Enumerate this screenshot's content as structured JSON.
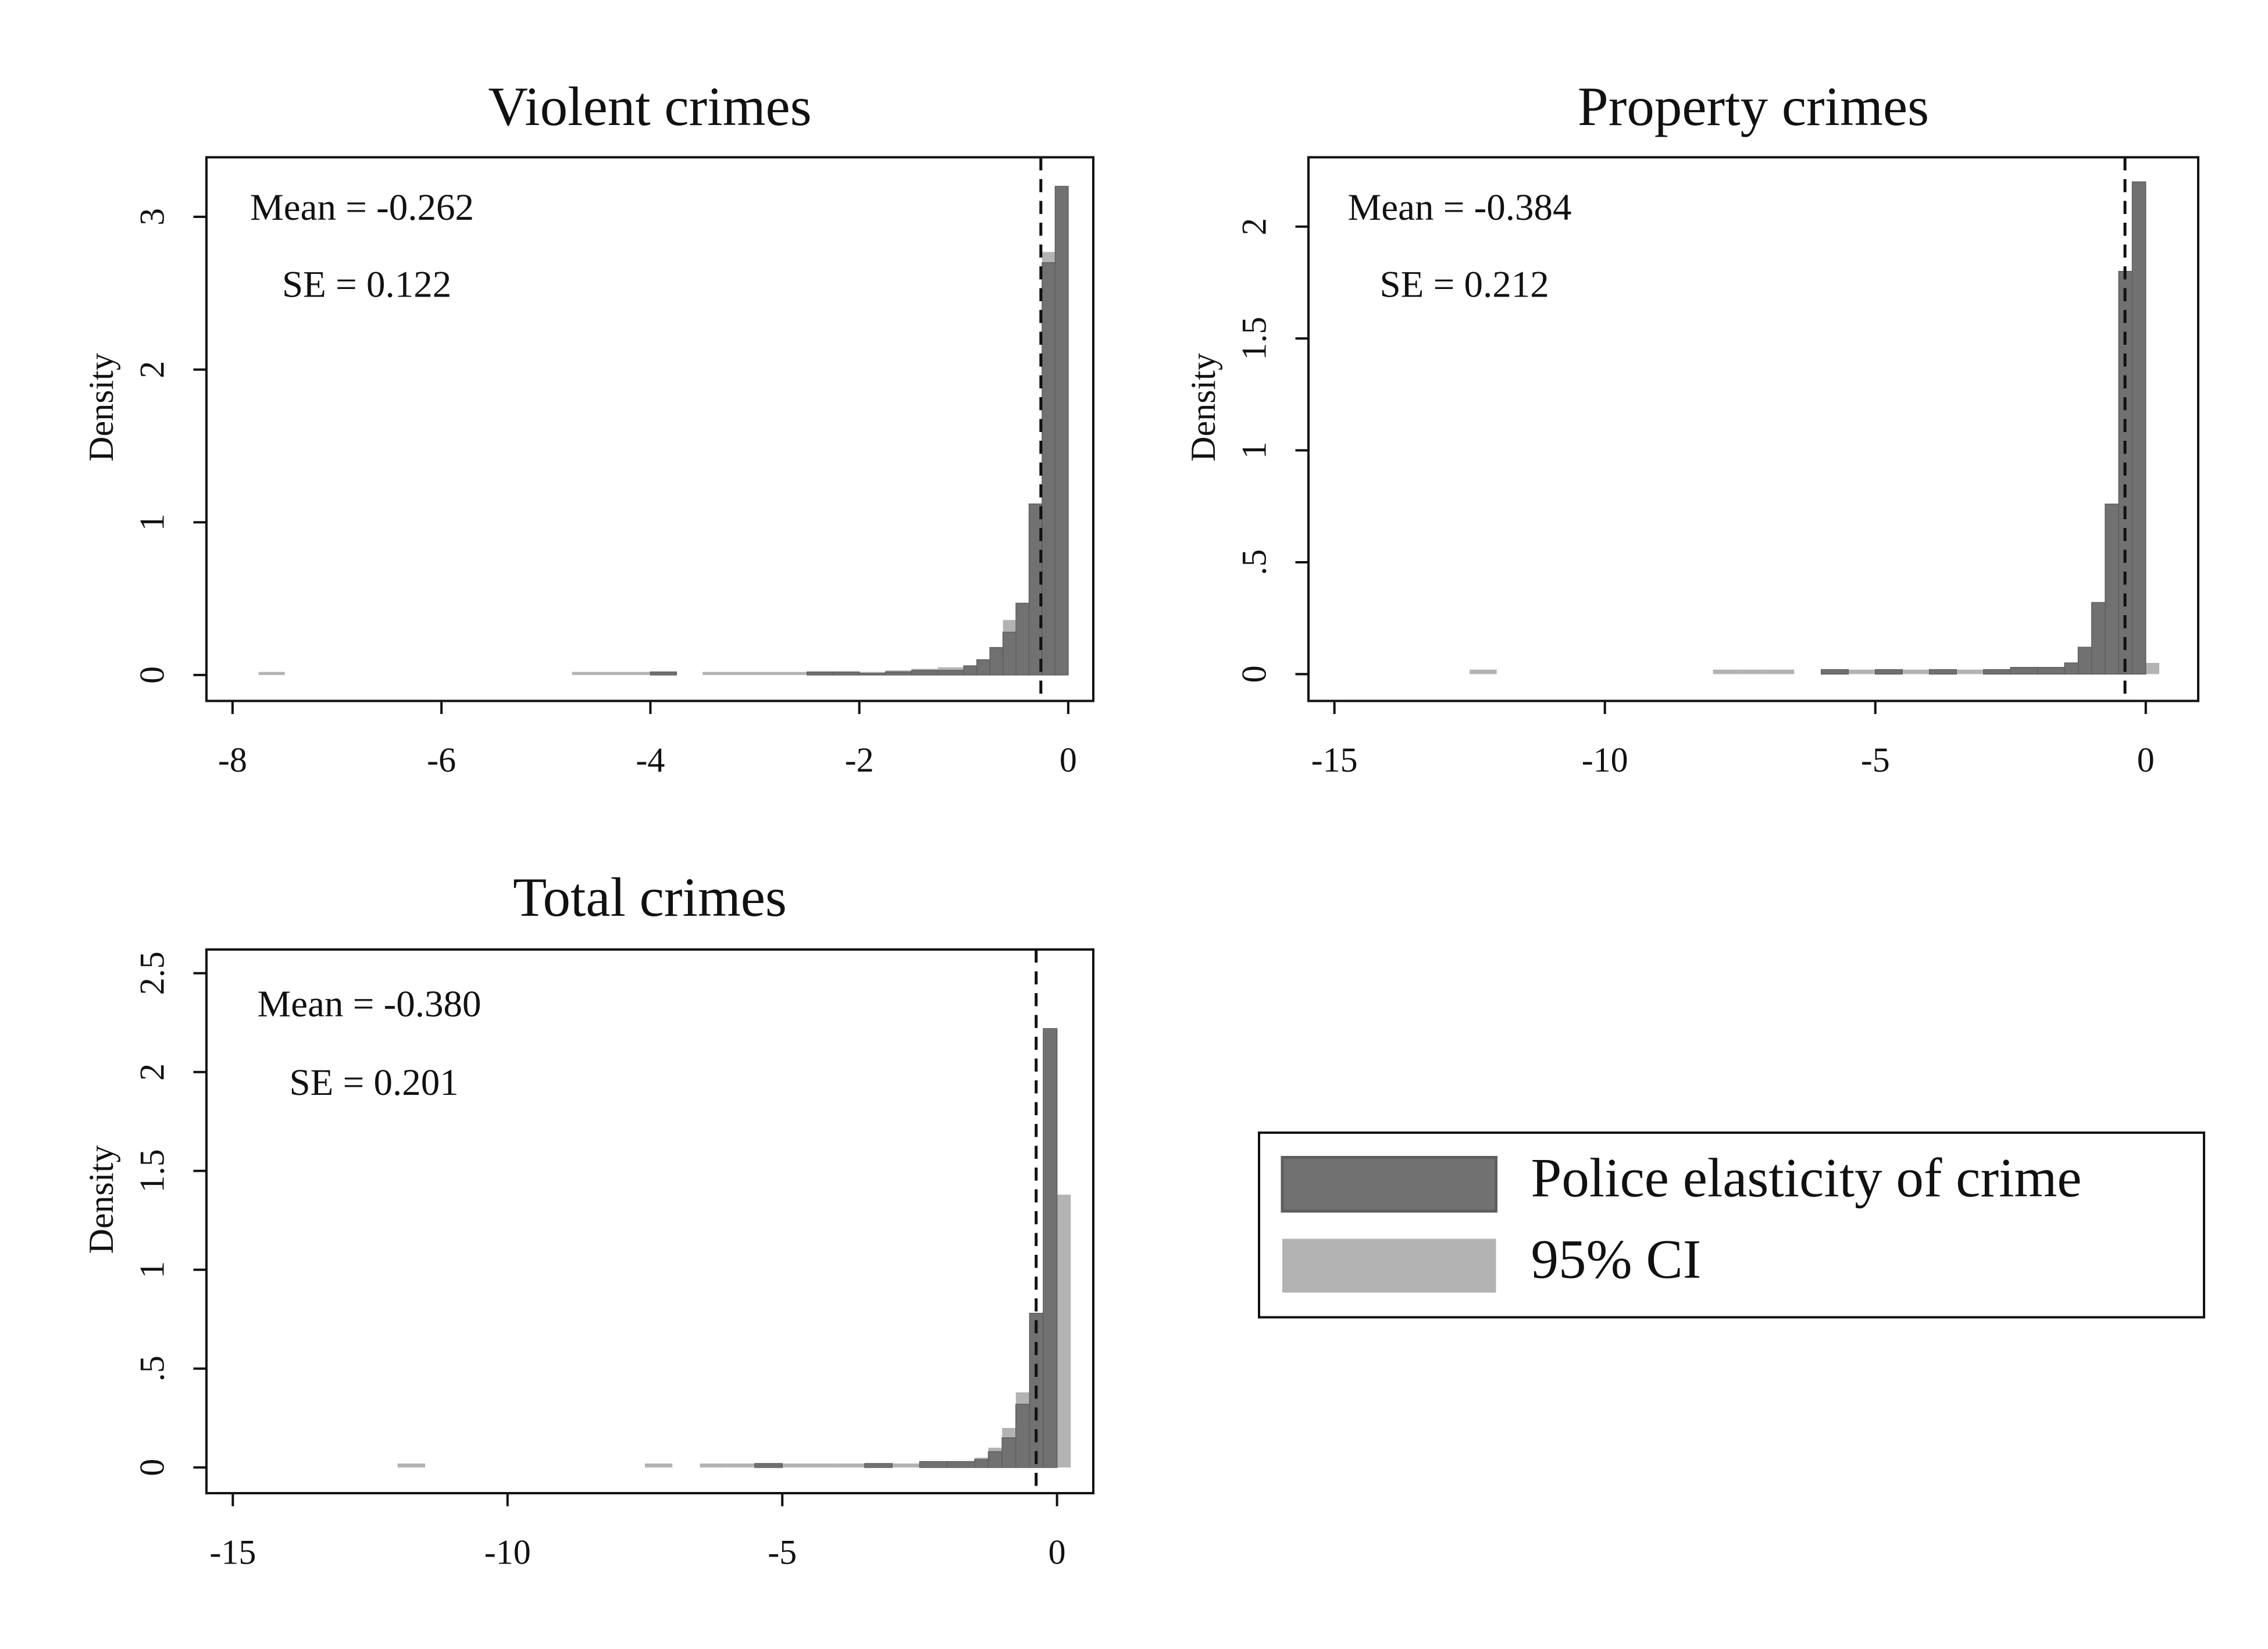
{
  "chart_data": [
    {
      "type": "histogram",
      "title": "Violent crimes",
      "y_label": "Density",
      "annotations": [
        "Mean = -0.262",
        "SE = 0.122"
      ],
      "mean_line": -0.262,
      "xlim": [
        -8.25,
        0.24
      ],
      "ylim": [
        -0.17,
        3.39
      ],
      "xticks": [
        -8,
        -6,
        -4,
        -2,
        0
      ],
      "yticks": [
        0,
        1,
        2,
        3
      ],
      "bins": [
        -7.75,
        -7.5,
        -7.25,
        -7,
        -6.75,
        -6.5,
        -6.25,
        -6,
        -5.75,
        -5.5,
        -5.25,
        -5,
        -4.75,
        -4.5,
        -4.25,
        -4,
        -3.75,
        -3.5,
        -3.25,
        -3,
        -2.75,
        -2.5,
        -2.25,
        -2,
        -1.75,
        -1.5,
        -1.25,
        -1,
        -0.875,
        -0.75,
        -0.625,
        -0.5,
        -0.375,
        -0.25,
        -0.125,
        0,
        0.125
      ],
      "series": [
        {
          "name": "Police elasticity of crime",
          "color": "#717171",
          "values": [
            0,
            0,
            0,
            0,
            0,
            0,
            0,
            0,
            0,
            0,
            0,
            0,
            0,
            0,
            0,
            0.02,
            0,
            0,
            0,
            0,
            0,
            0.02,
            0.02,
            0.01,
            0.02,
            0.03,
            0.03,
            0.06,
            0.1,
            0.18,
            0.28,
            0.47,
            1.12,
            2.7,
            3.2,
            0
          ]
        },
        {
          "name": "95% CI",
          "color": "#b3b3b3",
          "values": [
            0.02,
            0,
            0,
            0,
            0,
            0,
            0,
            0,
            0,
            0,
            0,
            0,
            0.02,
            0.02,
            0.02,
            0.02,
            0,
            0.02,
            0.02,
            0.02,
            0.02,
            0.02,
            0.02,
            0.02,
            0.03,
            0.04,
            0.05,
            0.06,
            0.1,
            0.12,
            0.36,
            0.36,
            0.8,
            2.77,
            2.77,
            0
          ]
        }
      ]
    },
    {
      "type": "histogram",
      "title": "Property crimes",
      "y_label": "Density",
      "annotations": [
        "Mean = -0.384",
        "SE = 0.212"
      ],
      "mean_line": -0.384,
      "xlim": [
        -15.48,
        0.97
      ],
      "ylim": [
        -0.12,
        2.31
      ],
      "xticks": [
        -15,
        -10,
        -5,
        0
      ],
      "yticks": [
        0,
        {
          "value": 0.5,
          "label": ".5"
        },
        1,
        1.5,
        2
      ],
      "bins": [
        -12.5,
        -12,
        -11.5,
        -11,
        -10.5,
        -10,
        -9.5,
        -9,
        -8.5,
        -8,
        -7.5,
        -7,
        -6.5,
        -6,
        -5.5,
        -5,
        -4.5,
        -4,
        -3.5,
        -3,
        -2.5,
        -2,
        -1.5,
        -1.25,
        -1,
        -0.75,
        -0.5,
        -0.25,
        0,
        0.25,
        0.5
      ],
      "series": [
        {
          "color": "#717171",
          "values": [
            0,
            0,
            0,
            0,
            0,
            0,
            0,
            0,
            0,
            0,
            0,
            0,
            0,
            0.02,
            0,
            0.02,
            0,
            0.02,
            0,
            0.02,
            0.03,
            0.03,
            0.05,
            0.12,
            0.32,
            0.76,
            1.8,
            2.2,
            0,
            0
          ]
        },
        {
          "color": "#b3b3b3",
          "values": [
            0.02,
            0,
            0,
            0,
            0,
            0,
            0,
            0,
            0,
            0.02,
            0.02,
            0.02,
            0,
            0.02,
            0.02,
            0.02,
            0.02,
            0.02,
            0.02,
            0.02,
            0.02,
            0.02,
            0.05,
            0.1,
            0.25,
            0.6,
            1.46,
            1.46,
            0.05,
            0
          ]
        }
      ]
    },
    {
      "type": "histogram",
      "title": "Total crimes",
      "y_label": "Density",
      "annotations": [
        "Mean = -0.380",
        "SE = 0.201"
      ],
      "mean_line": -0.38,
      "xlim": [
        -15.48,
        0.66
      ],
      "ylim": [
        -0.13,
        2.62
      ],
      "xticks": [
        -15,
        -10,
        -5,
        0
      ],
      "yticks": [
        0,
        {
          "value": 0.5,
          "label": ".5"
        },
        1,
        1.5,
        2,
        2.5
      ],
      "bins": [
        -12,
        -11.5,
        -11,
        -10.5,
        -10,
        -9.5,
        -9,
        -8.5,
        -8,
        -7.5,
        -7,
        -6.5,
        -6,
        -5.5,
        -5,
        -4.5,
        -4,
        -3.5,
        -3,
        -2.5,
        -2,
        -1.5,
        -1.25,
        -1,
        -0.75,
        -0.5,
        -0.25,
        0,
        0.25,
        0.5
      ],
      "series": [
        {
          "color": "#717171",
          "values": [
            0,
            0,
            0,
            0,
            0,
            0,
            0,
            0,
            0,
            0,
            0,
            0,
            0,
            0.02,
            0,
            0,
            0,
            0.02,
            0,
            0.03,
            0.03,
            0.04,
            0.08,
            0.15,
            0.32,
            0.78,
            2.22,
            0,
            0
          ]
        },
        {
          "color": "#b3b3b3",
          "values": [
            0.02,
            0,
            0,
            0,
            0,
            0,
            0,
            0,
            0,
            0.02,
            0,
            0.02,
            0.02,
            0.02,
            0.02,
            0.02,
            0.02,
            0.02,
            0.02,
            0.02,
            0.02,
            0.05,
            0.1,
            0.2,
            0.38,
            0.78,
            1.83,
            1.38,
            0
          ]
        }
      ]
    }
  ]
}
